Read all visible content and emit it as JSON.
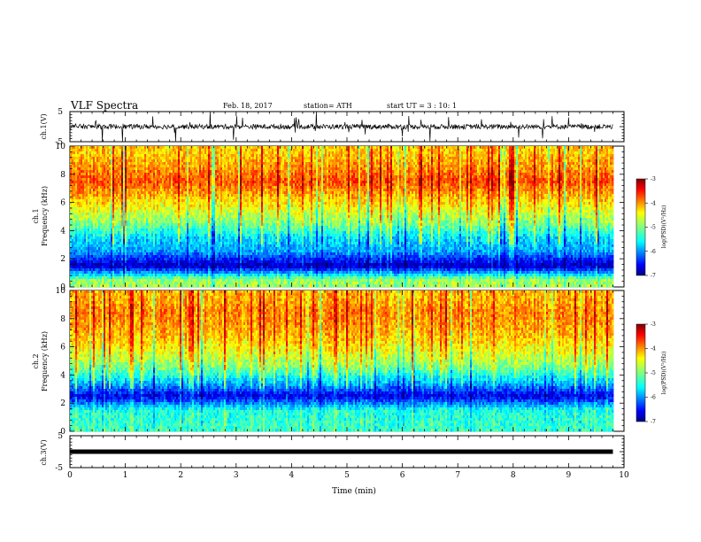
{
  "header": {
    "title": "VLF Spectra",
    "date": "Feb. 18, 2017",
    "station": "station= ATH",
    "start": "start UT =  3 : 10: 1"
  },
  "labels": {
    "ch1_wave": "ch.1(V)",
    "ch1_spec": "ch.1",
    "ch2_spec": "ch.2",
    "ch3_wave": "ch.3(V)",
    "freq": "Frequency (kHz)",
    "xlabel": "Time (min)",
    "colorbar": "log(PSD)(V²/Hz)"
  },
  "colors": {
    "low": "#00007f",
    "mid": "#7fff7f",
    "high": "#7f0000",
    "trace": "#000000"
  },
  "chart_data": [
    {
      "type": "line",
      "panel": "ch.1(V)",
      "ylabel": "ch.1(V)",
      "xlim": [
        0,
        10
      ],
      "ylim": [
        -5,
        5
      ],
      "yticks": [
        "5",
        "-5"
      ],
      "trace_range_min": [
        0,
        9.8
      ]
    },
    {
      "type": "heatmap",
      "panel": "ch.1",
      "ylabel": "Frequency (kHz)",
      "xlim": [
        0,
        10
      ],
      "ylim": [
        0,
        10
      ],
      "yticks": [
        "0",
        "2",
        "4",
        "6",
        "8",
        "10"
      ],
      "data_range_min": [
        0,
        9.8
      ],
      "colorbar": {
        "label": "log(PSD)(V²/Hz)",
        "range": [
          -7,
          -3
        ],
        "ticks": [
          "-3",
          "-4",
          "-5",
          "-6",
          "-7"
        ]
      },
      "profile": [
        {
          "freq_khz": 0.5,
          "log_psd": -4.9
        },
        {
          "freq_khz": 1.5,
          "log_psd": -6.8
        },
        {
          "freq_khz": 2.5,
          "log_psd": -5.9
        },
        {
          "freq_khz": 3.5,
          "log_psd": -5.6
        },
        {
          "freq_khz": 4.5,
          "log_psd": -5.0
        },
        {
          "freq_khz": 5.5,
          "log_psd": -4.6
        },
        {
          "freq_khz": 6.5,
          "log_psd": -4.2
        },
        {
          "freq_khz": 7.5,
          "log_psd": -3.8
        },
        {
          "freq_khz": 8.5,
          "log_psd": -4.1
        },
        {
          "freq_khz": 9.5,
          "log_psd": -4.3
        }
      ]
    },
    {
      "type": "heatmap",
      "panel": "ch.2",
      "ylabel": "Frequency (kHz)",
      "xlim": [
        0,
        10
      ],
      "ylim": [
        0,
        10
      ],
      "yticks": [
        "0",
        "2",
        "4",
        "6",
        "8",
        "10"
      ],
      "data_range_min": [
        0,
        9.8
      ],
      "colorbar": {
        "label": "log(PSD)(V²/Hz)",
        "range": [
          -7,
          -3
        ],
        "ticks": [
          "-3",
          "-4",
          "-5",
          "-6",
          "-7"
        ]
      },
      "profile": [
        {
          "freq_khz": 0.5,
          "log_psd": -5.3
        },
        {
          "freq_khz": 1.5,
          "log_psd": -5.4
        },
        {
          "freq_khz": 2.5,
          "log_psd": -6.6
        },
        {
          "freq_khz": 3.5,
          "log_psd": -5.7
        },
        {
          "freq_khz": 4.5,
          "log_psd": -5.0
        },
        {
          "freq_khz": 5.5,
          "log_psd": -4.6
        },
        {
          "freq_khz": 6.5,
          "log_psd": -4.3
        },
        {
          "freq_khz": 7.5,
          "log_psd": -4.1
        },
        {
          "freq_khz": 8.5,
          "log_psd": -4.0
        },
        {
          "freq_khz": 9.5,
          "log_psd": -4.2
        }
      ]
    },
    {
      "type": "line",
      "panel": "ch.3(V)",
      "ylabel": "ch.3(V)",
      "xlabel": "Time (min)",
      "xlim": [
        0,
        10
      ],
      "ylim": [
        -5,
        5
      ],
      "yticks": [
        "5",
        "-5"
      ],
      "xticks": [
        "0",
        "1",
        "2",
        "3",
        "4",
        "5",
        "6",
        "7",
        "8",
        "9",
        "10"
      ],
      "level": 0,
      "trace_range_min": [
        0,
        9.8
      ]
    }
  ]
}
